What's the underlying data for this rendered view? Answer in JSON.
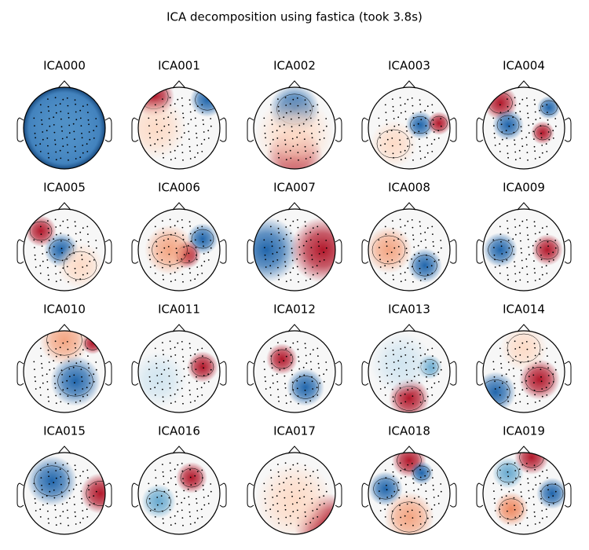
{
  "title": "ICA decomposition using fastica (took 3.8s)",
  "components": [
    "ICA000",
    "ICA001",
    "ICA002",
    "ICA003",
    "ICA004",
    "ICA005",
    "ICA006",
    "ICA007",
    "ICA008",
    "ICA009",
    "ICA010",
    "ICA011",
    "ICA012",
    "ICA013",
    "ICA014",
    "ICA015",
    "ICA016",
    "ICA017",
    "ICA018",
    "ICA019"
  ]
}
